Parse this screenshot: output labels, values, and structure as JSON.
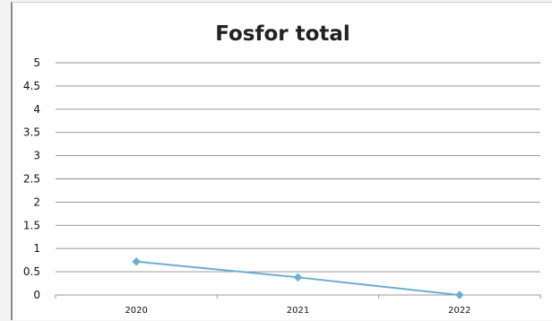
{
  "chart_data": {
    "type": "line",
    "title": "Fosfor total",
    "xlabel": "",
    "ylabel": "",
    "categories": [
      "2020",
      "2021",
      "2022"
    ],
    "series": [
      {
        "values": [
          0.72,
          0.38,
          0.0
        ]
      }
    ],
    "ylim": [
      0,
      5
    ],
    "yticks": [
      "0",
      "0.5",
      "1",
      "1.5",
      "2",
      "2.5",
      "3",
      "3.5",
      "4",
      "4.5",
      "5"
    ],
    "grid": true,
    "legend": "none",
    "line_color": "#6aaed6",
    "marker": "diamond"
  }
}
